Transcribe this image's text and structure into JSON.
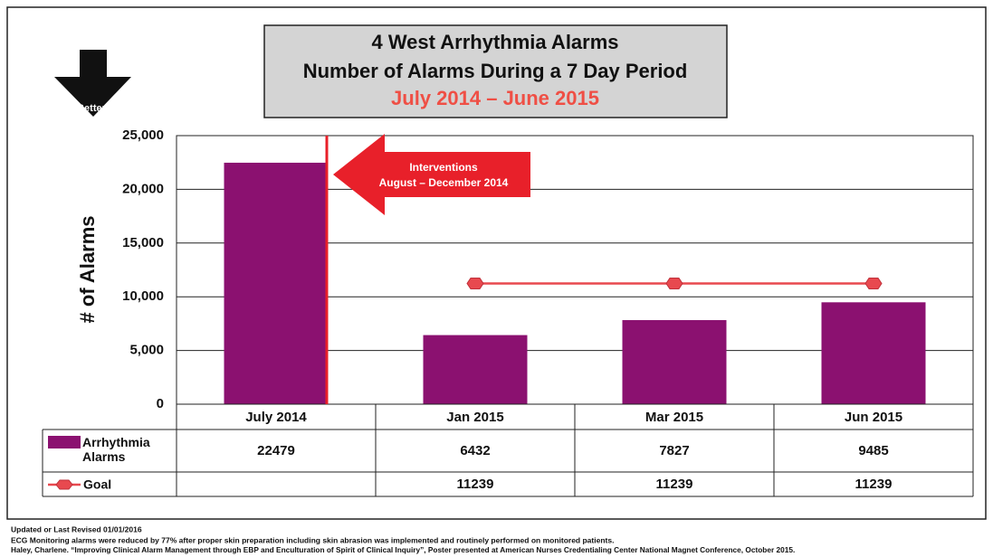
{
  "chart_data": {
    "type": "bar",
    "title": [
      "4 West Arrhythmia Alarms",
      "Number of Alarms During a 7 Day Period"
    ],
    "subtitle": "July 2014 – June 2015",
    "ylabel": "# of Alarms",
    "categories": [
      "July 2014",
      "Jan 2015",
      "Mar 2015",
      "Jun 2015"
    ],
    "series": [
      {
        "name": "Arrhythmia Alarms",
        "type": "bar",
        "color": "#8b1170",
        "values": [
          22479,
          6432,
          7827,
          9485
        ]
      },
      {
        "name": "Goal",
        "type": "line",
        "color": "#e8494f",
        "values": [
          null,
          11239,
          11239,
          11239
        ]
      }
    ],
    "ylim": [
      0,
      25000
    ],
    "yticks": [
      0,
      {
        "value": 5000,
        "label": "5,000"
      },
      {
        "value": 10000,
        "label": "10,000"
      },
      {
        "value": 15000,
        "label": "15,000"
      },
      {
        "value": 20000,
        "label": "20,000"
      },
      {
        "value": 25000,
        "label": "25,000"
      }
    ],
    "grid": true,
    "annotations": [
      "Interventions",
      "August – December 2014",
      "Better"
    ],
    "notes": [
      "Updated or Last Revised 01/01/2016",
      "ECG Monitoring alarms were reduced by 77% after proper skin preparation including skin abrasion was implemented and routinely performed on monitored patients.",
      "Haley, Charlene. “Improving Clinical Alarm Management through EBP and Enculturation of Spirit of Clinical Inquiry”, Poster presented at American Nurses Credentialing Center National Magnet Conference, October 2015."
    ]
  }
}
